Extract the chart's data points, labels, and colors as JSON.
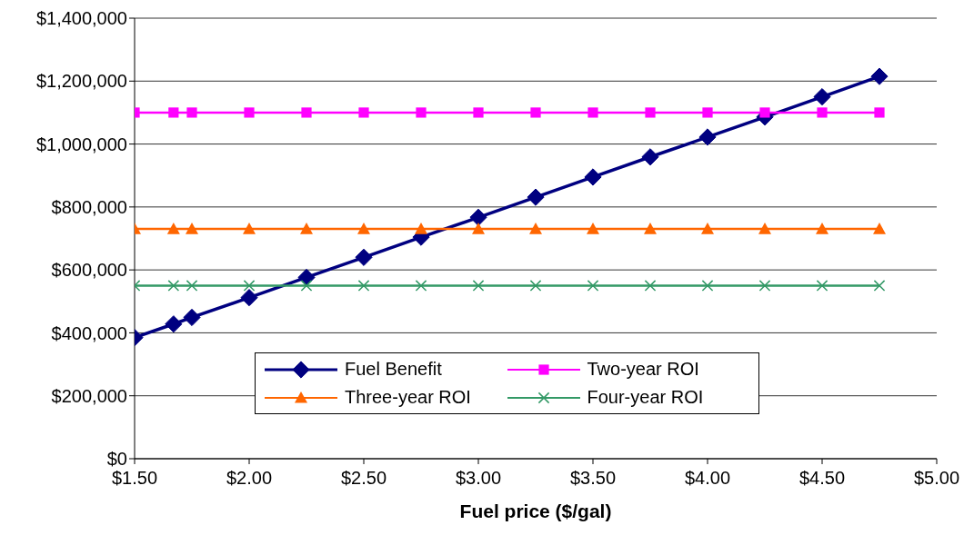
{
  "chart_data": {
    "type": "line",
    "xlabel": "Fuel price ($/gal)",
    "x": [
      1.5,
      1.67,
      1.75,
      2.0,
      2.25,
      2.5,
      2.75,
      3.0,
      3.25,
      3.5,
      3.75,
      4.0,
      4.25,
      4.5,
      4.75
    ],
    "series": [
      {
        "name": "Fuel Benefit",
        "color": "#000080",
        "marker": "diamond",
        "values": [
          385000,
          428000,
          449000,
          512000,
          576000,
          640000,
          704000,
          767000,
          831000,
          895000,
          959000,
          1022000,
          1086000,
          1150000,
          1215000
        ]
      },
      {
        "name": "Two-year ROI",
        "color": "#ff00ff",
        "marker": "square",
        "values": [
          1100000,
          1100000,
          1100000,
          1100000,
          1100000,
          1100000,
          1100000,
          1100000,
          1100000,
          1100000,
          1100000,
          1100000,
          1100000,
          1100000,
          1100000
        ]
      },
      {
        "name": "Three-year ROI",
        "color": "#ff6600",
        "marker": "triangle",
        "values": [
          730000,
          730000,
          730000,
          730000,
          730000,
          730000,
          730000,
          730000,
          730000,
          730000,
          730000,
          730000,
          730000,
          730000,
          730000
        ]
      },
      {
        "name": "Four-year ROI",
        "color": "#339966",
        "marker": "cross",
        "values": [
          550000,
          550000,
          550000,
          550000,
          550000,
          550000,
          550000,
          550000,
          550000,
          550000,
          550000,
          550000,
          550000,
          550000,
          550000
        ]
      }
    ],
    "xlim": [
      1.5,
      5
    ],
    "xticks": [
      {
        "value": 1.5,
        "label": "$1.50"
      },
      {
        "value": 2,
        "label": "$2.00"
      },
      {
        "value": 2.5,
        "label": "$2.50"
      },
      {
        "value": 3,
        "label": "$3.00"
      },
      {
        "value": 3.5,
        "label": "$3.50"
      },
      {
        "value": 4,
        "label": "$4.00"
      },
      {
        "value": 4.5,
        "label": "$4.50"
      },
      {
        "value": 5,
        "label": "$5.00"
      }
    ],
    "ylim": [
      0,
      1400000
    ],
    "yticks": [
      {
        "value": 0,
        "label": "$0"
      },
      {
        "value": 200000,
        "label": "$200,000"
      },
      {
        "value": 400000,
        "label": "$400,000"
      },
      {
        "value": 600000,
        "label": "$600,000"
      },
      {
        "value": 800000,
        "label": "$800,000"
      },
      {
        "value": 1000000,
        "label": "$1,000,000"
      },
      {
        "value": 1200000,
        "label": "$1,200,000"
      },
      {
        "value": 1400000,
        "label": "$1,400,000"
      }
    ],
    "grid": "y",
    "legend": "bottom",
    "line_style": "solid"
  }
}
